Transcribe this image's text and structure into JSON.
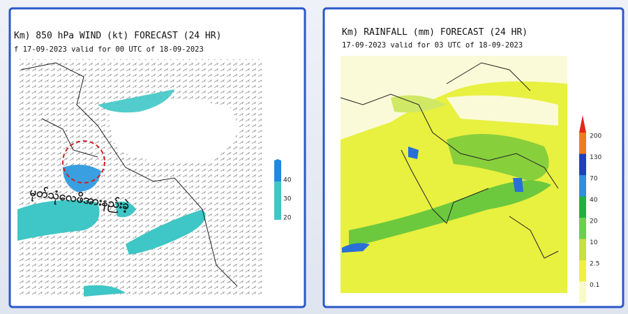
{
  "panels": [
    {
      "title": "Km) 850 hPa WIND (kt) FORECAST (24 HR)",
      "subtitle": "f 17-09-2023 valid for 00 UTC of 18-09-2023",
      "annotation": "မုတ်သုံလေဖိအားနည်းခဲ့",
      "colorbar": [
        40,
        30,
        20
      ]
    },
    {
      "title": "Km) RAINFALL (mm) FORECAST (24 HR)",
      "subtitle": "17-09-2023 valid for 03 UTC of 18-09-2023",
      "colorbar": [
        200,
        130,
        70,
        40,
        20,
        10,
        2.5,
        0.1
      ]
    }
  ]
}
